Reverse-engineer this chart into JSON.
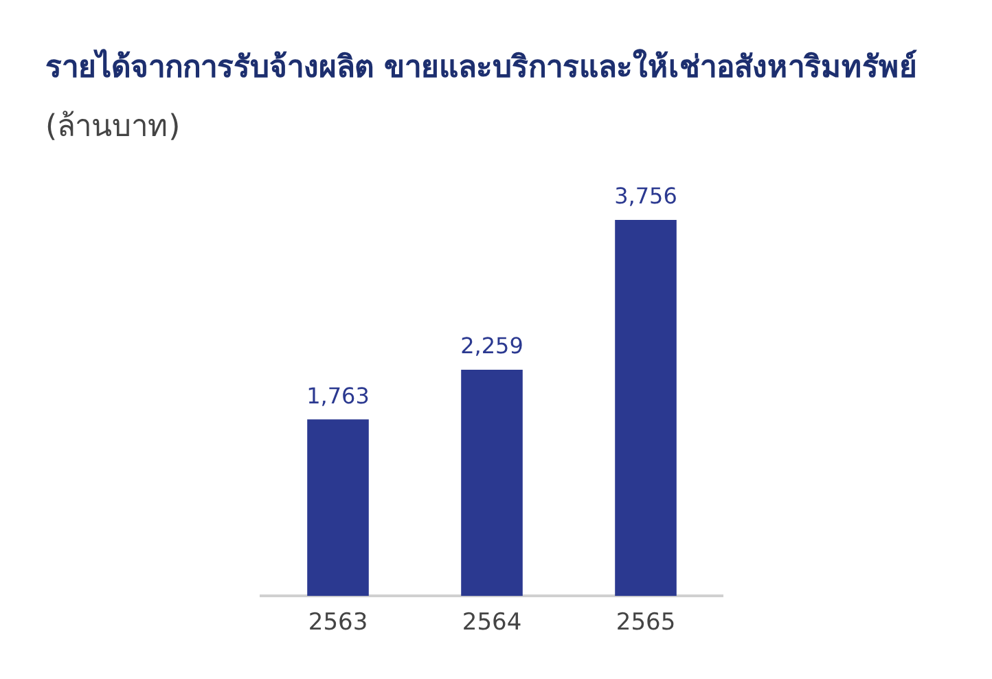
{
  "chart_data": {
    "type": "bar",
    "title": "รายได้จากการรับจ้างผลิต ขายและบริการและให้เช่าอสังหาริมทรัพย์",
    "ylabel": "(ล้านบาท)",
    "categories": [
      "2563",
      "2564",
      "2565"
    ],
    "values": [
      1763,
      2259,
      3756
    ],
    "color": "#2b3990",
    "data_labels": true,
    "value_labels": [
      "1,763",
      "2,259",
      "3,756"
    ],
    "grid": false,
    "legend": false
  }
}
